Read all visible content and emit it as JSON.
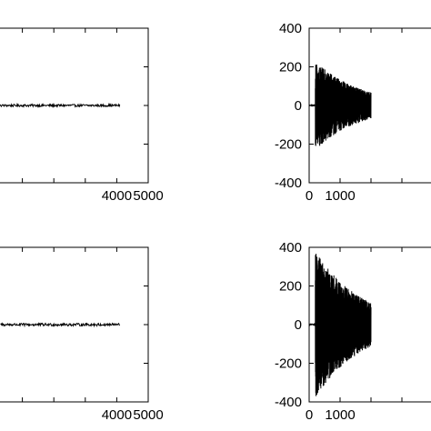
{
  "chart_data": [
    {
      "type": "line",
      "position": "top-left",
      "xlim": [
        0,
        5000
      ],
      "ylim": [
        -400,
        400
      ],
      "xticks": [
        0,
        1000,
        2000,
        3000,
        4000,
        5000
      ],
      "xtick_labels_visible": [
        "4000",
        "5000"
      ],
      "yticks": [
        -400,
        -200,
        0,
        200,
        400
      ],
      "ytick_labels_visible": [],
      "grid": false,
      "series": [
        {
          "kind": "noise",
          "x_start": 0,
          "x_end": 4096,
          "amplitude": 6,
          "baseline": 0
        }
      ]
    },
    {
      "type": "line",
      "position": "top-right",
      "xlim": [
        0,
        5000
      ],
      "ylim": [
        -400,
        400
      ],
      "xticks": [
        0,
        1000,
        2000,
        3000,
        4000,
        5000
      ],
      "xtick_labels_visible": [
        "0",
        "1000"
      ],
      "yticks": [
        -400,
        -200,
        0,
        200,
        400
      ],
      "ytick_labels_visible": [
        "400",
        "200",
        "0",
        "-200",
        "-400"
      ],
      "grid": false,
      "series": [
        {
          "kind": "burst",
          "onset_x": 200,
          "peak_amplitude": 230,
          "decay": "exponential",
          "pre_onset_amplitude": 2
        }
      ]
    },
    {
      "type": "line",
      "position": "bottom-left",
      "xlim": [
        0,
        5000
      ],
      "ylim": [
        -400,
        400
      ],
      "xticks": [
        0,
        1000,
        2000,
        3000,
        4000,
        5000
      ],
      "xtick_labels_visible": [
        "4000",
        "5000"
      ],
      "yticks": [
        -400,
        -200,
        0,
        200,
        400
      ],
      "ytick_labels_visible": [],
      "grid": false,
      "series": [
        {
          "kind": "noise",
          "x_start": 0,
          "x_end": 4096,
          "amplitude": 7,
          "baseline": 0
        }
      ]
    },
    {
      "type": "line",
      "position": "bottom-right",
      "xlim": [
        0,
        5000
      ],
      "ylim": [
        -400,
        400
      ],
      "xticks": [
        0,
        1000,
        2000,
        3000,
        4000,
        5000
      ],
      "xtick_labels_visible": [
        "0",
        "1000"
      ],
      "yticks": [
        -400,
        -200,
        0,
        200,
        400
      ],
      "ytick_labels_visible": [
        "400",
        "200",
        "0",
        "-200",
        "-400"
      ],
      "grid": false,
      "series": [
        {
          "kind": "burst",
          "onset_x": 200,
          "peak_amplitude": 380,
          "decay": "exponential",
          "pre_onset_amplitude": 2
        }
      ]
    }
  ]
}
